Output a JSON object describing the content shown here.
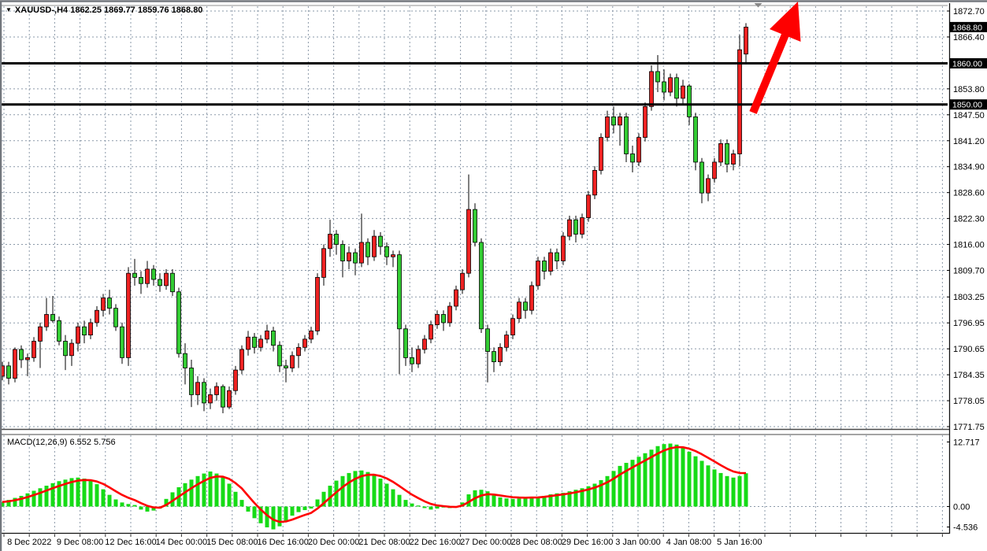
{
  "window": {
    "title": "XAUUSD-,H4  1862.25 1869.77 1859.76 1868.80",
    "dropdown_icon": "▼"
  },
  "colors": {
    "bull_body": "#ee2222",
    "bear_body": "#33cc33",
    "candle_outline": "#000000",
    "wick": "#000000",
    "grid": "#8a98a8",
    "hline": "#000000",
    "badge_bg": "#000000",
    "badge_text": "#ffffff",
    "macd_bar": "#16db16",
    "signal_line": "#ff0000",
    "arrow": "#fe0000",
    "axis_text": "#000000",
    "frame": "#73777d",
    "shift_marker": "#888888"
  },
  "chart_data": {
    "type": "candlestick",
    "symbol": "XAUUSD",
    "timeframe": "H4",
    "grid": true,
    "ohlc_readout": {
      "open": 1862.25,
      "high": 1869.77,
      "low": 1859.76,
      "close": 1868.8
    },
    "price_axis": {
      "ticks": [
        {
          "label": "1872.70",
          "value": 1872.7
        },
        {
          "label": "1866.40",
          "value": 1866.4
        },
        {
          "label": "",
          "value": 1860.1
        },
        {
          "label": "1853.80",
          "value": 1853.8
        },
        {
          "label": "1847.50",
          "value": 1847.5
        },
        {
          "label": "1841.20",
          "value": 1841.2
        },
        {
          "label": "1834.90",
          "value": 1834.9
        },
        {
          "label": "1828.60",
          "value": 1828.6
        },
        {
          "label": "1822.30",
          "value": 1822.3
        },
        {
          "label": "1816.00",
          "value": 1816.0
        },
        {
          "label": "1809.70",
          "value": 1809.7
        },
        {
          "label": "1803.25",
          "value": 1803.25
        },
        {
          "label": "1796.95",
          "value": 1796.95
        },
        {
          "label": "1790.65",
          "value": 1790.65
        },
        {
          "label": "1784.35",
          "value": 1784.35
        },
        {
          "label": "1778.05",
          "value": 1778.05
        },
        {
          "label": "1771.75",
          "value": 1771.75
        }
      ],
      "current_price": {
        "label": "1868.80",
        "value": 1868.8
      }
    },
    "hlines": [
      {
        "label": "1860.00",
        "value": 1860.0
      },
      {
        "label": "1850.00",
        "value": 1850.0
      }
    ],
    "time_axis": {
      "labels": [
        "8 Dec 2022",
        "9 Dec 08:00",
        "12 Dec 16:00",
        "14 Dec 00:00",
        "15 Dec 08:00",
        "16 Dec 16:00",
        "20 Dec 00:00",
        "21 Dec 08:00",
        "22 Dec 16:00",
        "27 Dec 00:00",
        "28 Dec 08:00",
        "29 Dec 16:00",
        "3 Jan 00:00",
        "4 Jan 08:00",
        "5 Jan 16:00"
      ]
    },
    "candles": [
      [
        1784.0,
        1787.5,
        1783.0,
        1786.5
      ],
      [
        1786.5,
        1787.5,
        1782.0,
        1783.5
      ],
      [
        1783.5,
        1791.0,
        1782.5,
        1790.5
      ],
      [
        1790.5,
        1791.5,
        1786.0,
        1788.0
      ],
      [
        1788.0,
        1789.5,
        1784.0,
        1788.5
      ],
      [
        1788.5,
        1793.5,
        1787.5,
        1792.5
      ],
      [
        1792.5,
        1797.0,
        1786.0,
        1796.0
      ],
      [
        1796.0,
        1803.0,
        1795.0,
        1799.0
      ],
      [
        1799.0,
        1803.5,
        1797.0,
        1797.5
      ],
      [
        1797.5,
        1798.5,
        1791.5,
        1792.5
      ],
      [
        1792.5,
        1794.0,
        1785.5,
        1789.0
      ],
      [
        1789.0,
        1793.0,
        1786.5,
        1792.0
      ],
      [
        1792.0,
        1797.0,
        1790.0,
        1796.0
      ],
      [
        1796.0,
        1797.5,
        1792.0,
        1794.0
      ],
      [
        1794.0,
        1798.0,
        1793.0,
        1797.0
      ],
      [
        1797.0,
        1801.0,
        1796.0,
        1800.0
      ],
      [
        1800.0,
        1804.0,
        1798.5,
        1803.0
      ],
      [
        1803.0,
        1805.0,
        1799.0,
        1800.5
      ],
      [
        1800.5,
        1801.5,
        1795.0,
        1796.0
      ],
      [
        1796.0,
        1797.0,
        1787.0,
        1788.5
      ],
      [
        1788.5,
        1810.5,
        1786.5,
        1809.0
      ],
      [
        1809.0,
        1812.5,
        1806.0,
        1808.0
      ],
      [
        1808.0,
        1809.5,
        1804.0,
        1806.5
      ],
      [
        1806.5,
        1812.0,
        1805.5,
        1810.0
      ],
      [
        1810.0,
        1811.0,
        1806.0,
        1807.5
      ],
      [
        1807.5,
        1809.0,
        1804.5,
        1806.0
      ],
      [
        1806.0,
        1810.0,
        1805.0,
        1809.0
      ],
      [
        1809.0,
        1810.0,
        1803.5,
        1804.5
      ],
      [
        1804.5,
        1805.5,
        1788.5,
        1789.5
      ],
      [
        1789.5,
        1792.0,
        1782.0,
        1786.0
      ],
      [
        1786.0,
        1788.0,
        1776.5,
        1779.5
      ],
      [
        1779.5,
        1784.0,
        1777.0,
        1782.5
      ],
      [
        1782.5,
        1783.5,
        1775.5,
        1777.5
      ],
      [
        1777.5,
        1781.0,
        1776.0,
        1779.5
      ],
      [
        1779.5,
        1782.5,
        1778.0,
        1781.5
      ],
      [
        1781.5,
        1782.0,
        1775.0,
        1776.5
      ],
      [
        1776.5,
        1781.5,
        1776.0,
        1780.5
      ],
      [
        1780.5,
        1786.5,
        1779.5,
        1785.5
      ],
      [
        1785.5,
        1791.5,
        1784.5,
        1790.5
      ],
      [
        1790.5,
        1795.0,
        1789.0,
        1793.5
      ],
      [
        1793.5,
        1794.5,
        1789.5,
        1791.0
      ],
      [
        1791.0,
        1794.0,
        1790.0,
        1793.0
      ],
      [
        1793.0,
        1796.5,
        1792.0,
        1795.0
      ],
      [
        1795.0,
        1796.0,
        1790.0,
        1791.5
      ],
      [
        1791.5,
        1792.5,
        1785.0,
        1786.5
      ],
      [
        1786.5,
        1788.0,
        1782.5,
        1786.0
      ],
      [
        1786.0,
        1790.0,
        1785.0,
        1789.0
      ],
      [
        1789.0,
        1792.0,
        1786.0,
        1791.0
      ],
      [
        1791.0,
        1794.0,
        1790.0,
        1793.0
      ],
      [
        1793.0,
        1796.0,
        1792.0,
        1795.0
      ],
      [
        1795.0,
        1809.0,
        1794.0,
        1808.0
      ],
      [
        1808.0,
        1816.0,
        1806.0,
        1815.0
      ],
      [
        1815.0,
        1822.0,
        1813.0,
        1818.5
      ],
      [
        1818.5,
        1819.5,
        1813.5,
        1816.0
      ],
      [
        1816.0,
        1817.0,
        1808.0,
        1812.0
      ],
      [
        1812.0,
        1815.5,
        1810.0,
        1814.0
      ],
      [
        1814.0,
        1815.0,
        1808.5,
        1811.5
      ],
      [
        1811.5,
        1823.5,
        1810.5,
        1816.5
      ],
      [
        1816.5,
        1817.5,
        1811.0,
        1813.0
      ],
      [
        1813.0,
        1819.5,
        1812.0,
        1818.0
      ],
      [
        1818.0,
        1819.0,
        1813.5,
        1815.5
      ],
      [
        1815.5,
        1816.5,
        1811.0,
        1813.0
      ],
      [
        1813.0,
        1814.5,
        1810.5,
        1813.5
      ],
      [
        1813.5,
        1814.5,
        1784.5,
        1795.5
      ],
      [
        1795.5,
        1796.5,
        1786.5,
        1788.5
      ],
      [
        1788.5,
        1791.0,
        1785.0,
        1787.0
      ],
      [
        1787.0,
        1791.5,
        1786.0,
        1790.5
      ],
      [
        1790.5,
        1794.0,
        1789.5,
        1793.0
      ],
      [
        1793.0,
        1797.5,
        1792.0,
        1796.5
      ],
      [
        1796.5,
        1800.0,
        1795.5,
        1799.0
      ],
      [
        1799.0,
        1800.0,
        1795.0,
        1797.0
      ],
      [
        1797.0,
        1802.0,
        1796.0,
        1801.0
      ],
      [
        1801.0,
        1806.0,
        1800.0,
        1805.0
      ],
      [
        1805.0,
        1810.0,
        1804.0,
        1809.0
      ],
      [
        1809.0,
        1833.0,
        1808.0,
        1824.5
      ],
      [
        1824.5,
        1826.0,
        1815.5,
        1816.5
      ],
      [
        1816.5,
        1817.5,
        1794.5,
        1795.5
      ],
      [
        1795.5,
        1796.5,
        1782.5,
        1790.0
      ],
      [
        1790.0,
        1791.0,
        1785.0,
        1787.5
      ],
      [
        1787.5,
        1792.0,
        1786.5,
        1791.0
      ],
      [
        1791.0,
        1795.0,
        1790.0,
        1794.0
      ],
      [
        1794.0,
        1799.0,
        1793.0,
        1798.0
      ],
      [
        1798.0,
        1803.0,
        1797.0,
        1802.0
      ],
      [
        1802.0,
        1803.0,
        1798.0,
        1800.0
      ],
      [
        1800.0,
        1807.0,
        1799.0,
        1806.0
      ],
      [
        1806.0,
        1813.0,
        1805.0,
        1812.0
      ],
      [
        1812.0,
        1813.0,
        1807.5,
        1809.5
      ],
      [
        1809.5,
        1815.0,
        1808.5,
        1814.0
      ],
      [
        1814.0,
        1815.0,
        1810.0,
        1812.0
      ],
      [
        1812.0,
        1819.0,
        1811.0,
        1818.0
      ],
      [
        1818.0,
        1823.0,
        1817.0,
        1822.0
      ],
      [
        1822.0,
        1823.0,
        1816.5,
        1818.5
      ],
      [
        1818.5,
        1823.5,
        1817.5,
        1822.5
      ],
      [
        1822.5,
        1829.0,
        1821.5,
        1828.0
      ],
      [
        1828.0,
        1835.0,
        1827.0,
        1834.0
      ],
      [
        1834.0,
        1843.0,
        1833.0,
        1842.0
      ],
      [
        1842.0,
        1848.5,
        1841.0,
        1847.0
      ],
      [
        1847.0,
        1849.5,
        1843.0,
        1845.0
      ],
      [
        1845.0,
        1848.0,
        1840.0,
        1847.0
      ],
      [
        1847.0,
        1848.0,
        1836.0,
        1838.0
      ],
      [
        1838.0,
        1840.0,
        1833.5,
        1836.0
      ],
      [
        1836.0,
        1843.0,
        1835.0,
        1842.0
      ],
      [
        1842.0,
        1850.5,
        1841.0,
        1849.5
      ],
      [
        1849.5,
        1859.5,
        1848.5,
        1858.0
      ],
      [
        1858.0,
        1862.0,
        1853.0,
        1855.5
      ],
      [
        1855.5,
        1858.5,
        1851.0,
        1853.0
      ],
      [
        1853.0,
        1857.5,
        1852.0,
        1856.5
      ],
      [
        1856.5,
        1857.5,
        1849.5,
        1851.5
      ],
      [
        1851.5,
        1856.0,
        1850.0,
        1854.5
      ],
      [
        1854.5,
        1855.0,
        1845.0,
        1847.0
      ],
      [
        1847.0,
        1848.0,
        1834.0,
        1836.0
      ],
      [
        1836.0,
        1837.0,
        1826.0,
        1828.5
      ],
      [
        1828.5,
        1833.0,
        1826.5,
        1832.0
      ],
      [
        1832.0,
        1837.0,
        1831.0,
        1836.0
      ],
      [
        1836.0,
        1841.5,
        1835.0,
        1840.5
      ],
      [
        1840.5,
        1841.5,
        1833.5,
        1835.5
      ],
      [
        1835.5,
        1839.0,
        1834.0,
        1838.0
      ],
      [
        1838.0,
        1866.9,
        1835.0,
        1863.3
      ],
      [
        1862.25,
        1869.77,
        1859.76,
        1868.8
      ]
    ],
    "macd": {
      "label": "MACD(12,26,9) 6.552 5.756",
      "params": "12,26,9",
      "value": 6.552,
      "signal": 5.756,
      "ticks": [
        {
          "label": "12.717",
          "value": 12.717
        },
        {
          "label": "0.00",
          "value": 0
        },
        {
          "label": "-4.536",
          "value": -4.536
        }
      ],
      "histogram": [
        0.9,
        1.3,
        1.7,
        2.1,
        2.6,
        3.1,
        3.6,
        4.1,
        4.6,
        5.0,
        5.3,
        5.6,
        5.7,
        5.5,
        5.1,
        4.4,
        3.4,
        2.3,
        1.4,
        0.8,
        0.5,
        0.3,
        -0.6,
        -1.0,
        -0.8,
        -0.4,
        1.5,
        2.8,
        3.8,
        4.6,
        5.3,
        6.0,
        6.5,
        6.9,
        6.5,
        5.8,
        4.5,
        2.9,
        1.3,
        -1.0,
        -2.3,
        -3.3,
        -4.1,
        -4.5,
        -3.9,
        -2.8,
        -1.8,
        -1.1,
        -0.7,
        -0.4,
        1.4,
        2.9,
        4.1,
        5.1,
        6.0,
        6.6,
        7.0,
        7.1,
        6.8,
        6.3,
        5.5,
        4.5,
        3.4,
        2.3,
        1.3,
        0.6,
        0.2,
        -0.3,
        -0.6,
        -0.4,
        -0.2,
        -0.3,
        -0.2,
        0.8,
        2.4,
        3.2,
        3.3,
        3.0,
        2.2,
        1.8,
        1.6,
        1.5,
        1.6,
        1.7,
        1.8,
        1.9,
        2.1,
        2.4,
        2.6,
        2.7,
        3.0,
        3.3,
        3.6,
        4.0,
        4.5,
        5.2,
        6.0,
        7.0,
        8.0,
        8.6,
        9.2,
        9.8,
        10.5,
        11.2,
        11.9,
        12.3,
        12.4,
        12.2,
        11.6,
        10.8,
        9.9,
        9.0,
        8.1,
        7.3,
        6.6,
        6.0,
        5.7,
        6.0,
        6.552
      ]
    },
    "annotations": {
      "arrow": {
        "shape": "up-arrow",
        "color": "#fe0000"
      },
      "shift_marker": {
        "shape": "down-triangle",
        "color": "#888888"
      }
    }
  }
}
